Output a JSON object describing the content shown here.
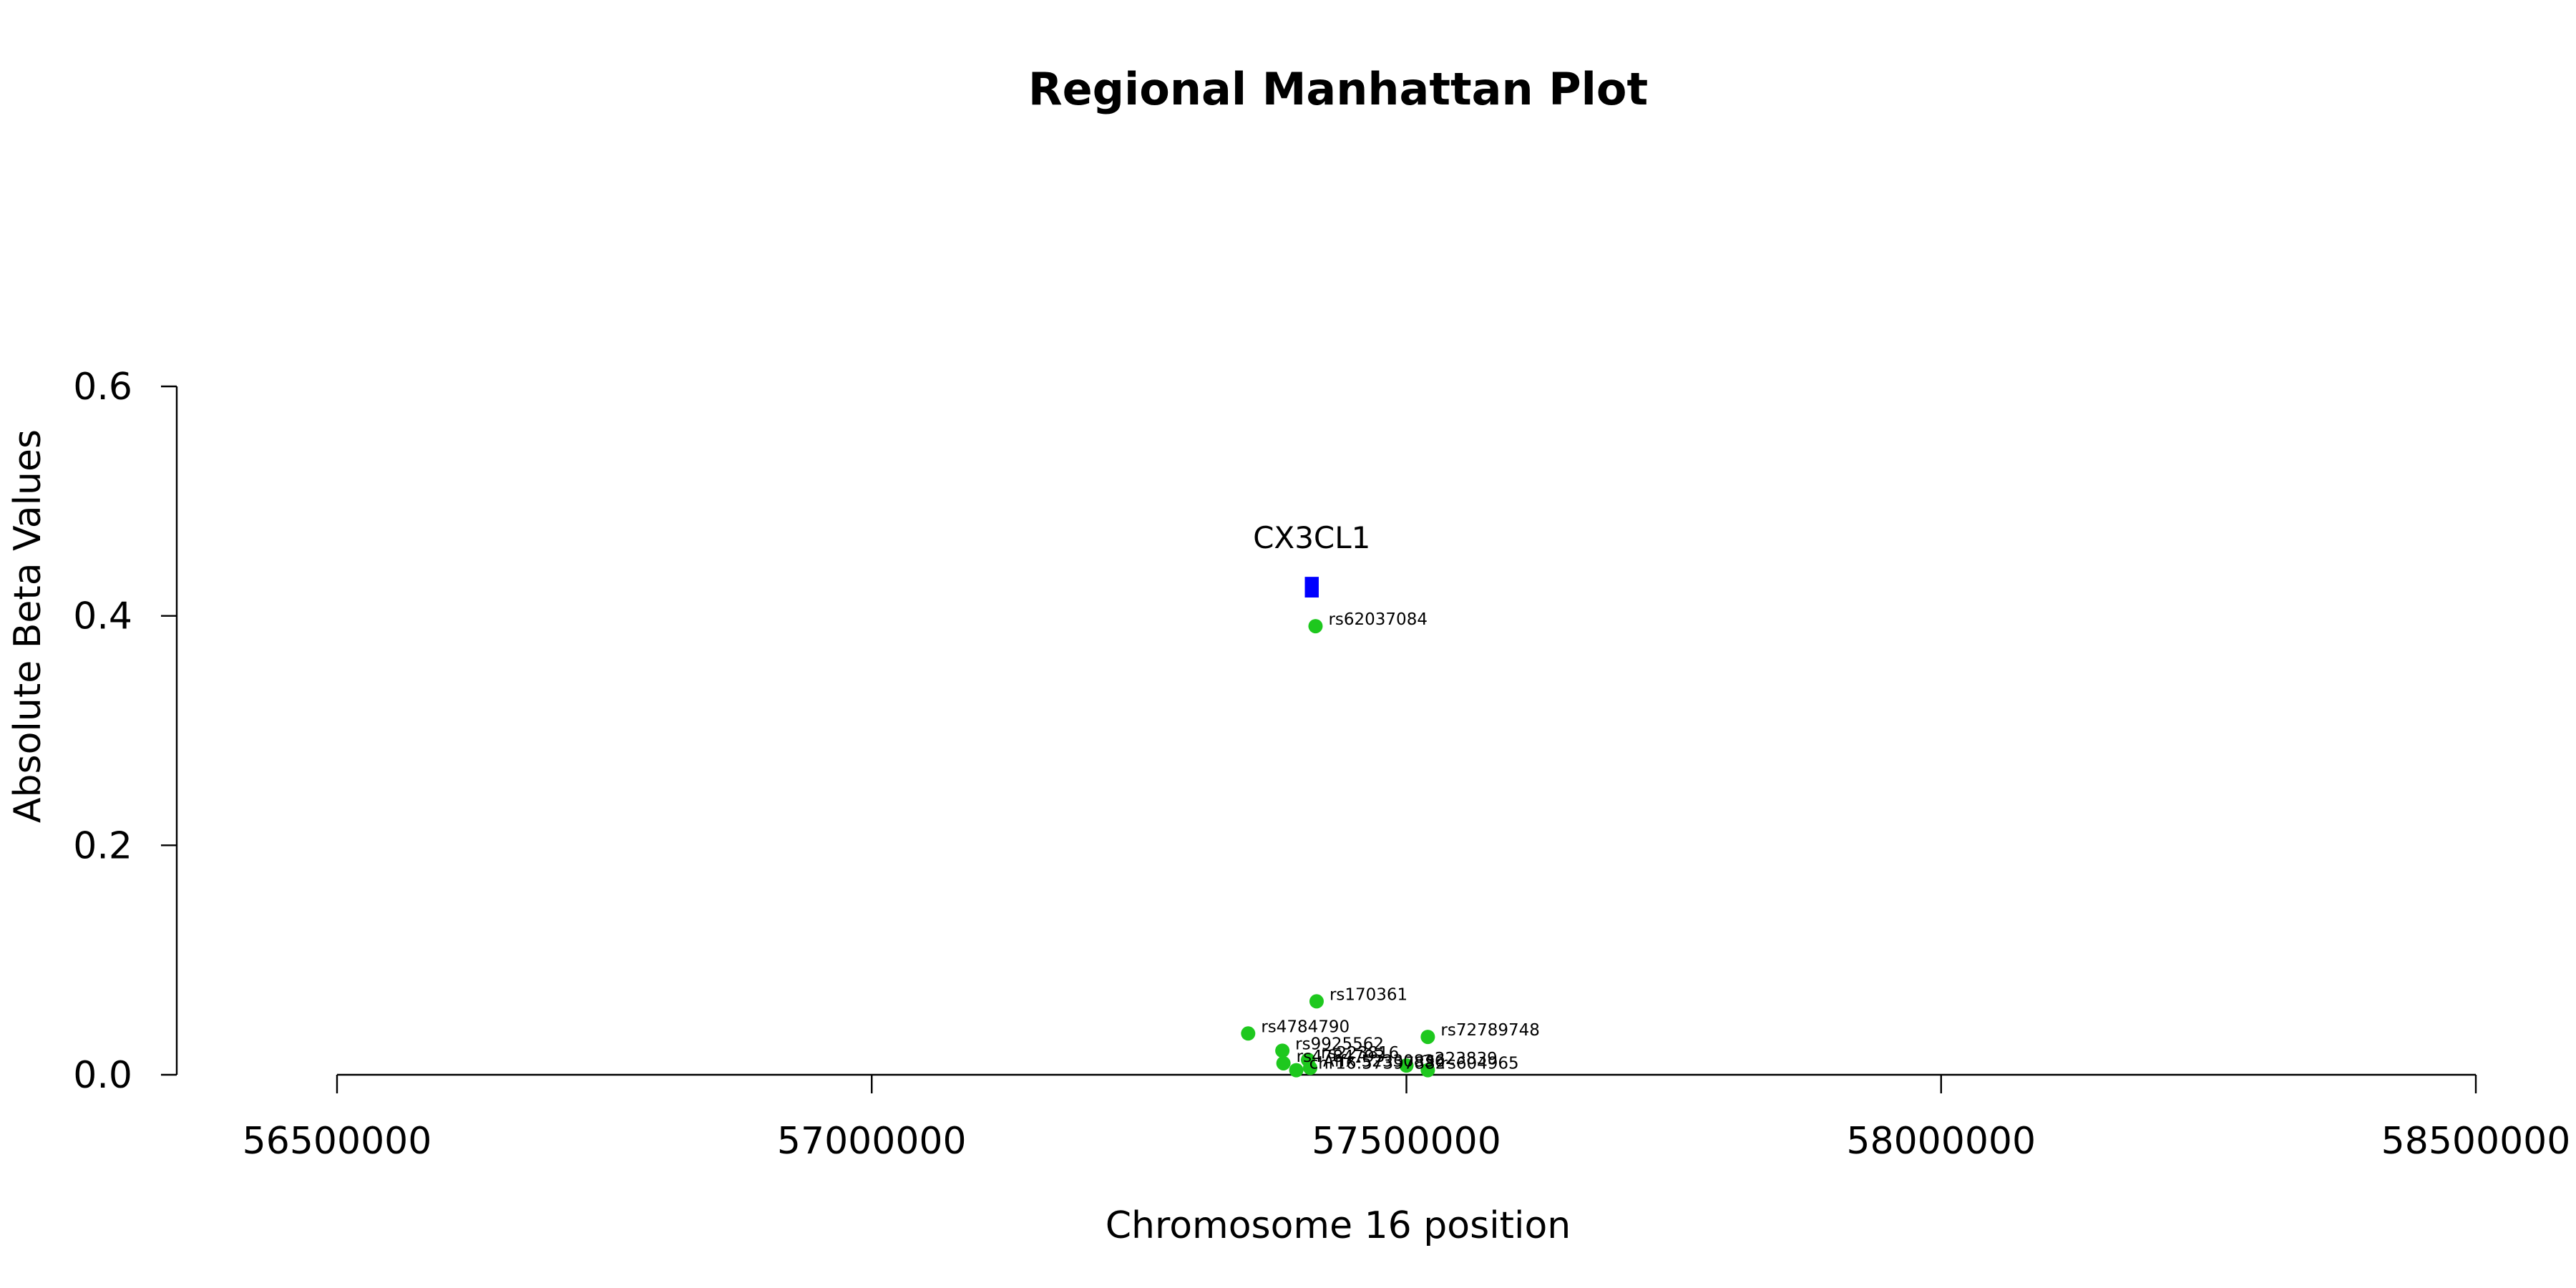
{
  "chart_data": {
    "type": "scatter",
    "title": "Regional Manhattan Plot",
    "xlabel": "Chromosome 16 position",
    "ylabel": "Absolute Beta Values",
    "xlim": [
      56500000,
      58500000
    ],
    "ylim": [
      0,
      0.6
    ],
    "x_ticks": [
      56500000,
      57000000,
      57500000,
      58000000,
      58500000
    ],
    "y_ticks": [
      0.0,
      0.2,
      0.4,
      0.6
    ],
    "x_tick_labels": [
      "56500000",
      "57000000",
      "57500000",
      "58000000",
      "58500000"
    ],
    "y_tick_labels": [
      "0.0",
      "0.2",
      "0.4",
      "0.6"
    ],
    "grid": false,
    "point_color": "#1ec81e",
    "gene_color": "#0000ff",
    "gene": {
      "name": "CX3CL1",
      "start": 57405000,
      "end": 57418000,
      "y_low": 0.416,
      "y_high": 0.434
    },
    "points": [
      {
        "label": "rs62037084",
        "x": 57415000,
        "y": 0.391
      },
      {
        "label": "rs170361",
        "x": 57416000,
        "y": 0.064
      },
      {
        "label": "rs4784790",
        "x": 57352000,
        "y": 0.036
      },
      {
        "label": "rs72789748",
        "x": 57520000,
        "y": 0.033
      },
      {
        "label": "rs9925562",
        "x": 57384000,
        "y": 0.021
      },
      {
        "label": "rs4784793",
        "x": 57385000,
        "y": 0.01
      },
      {
        "label": "rs223816",
        "x": 57408000,
        "y": 0.013
      },
      {
        "label": "rs223839",
        "x": 57500000,
        "y": 0.008
      },
      {
        "label": "rs604965",
        "x": 57520000,
        "y": 0.004
      },
      {
        "label": "chr16:57397882",
        "x": 57397000,
        "y": 0.004
      },
      {
        "label": "Affx-52330836",
        "x": 57410000,
        "y": 0.006
      }
    ]
  }
}
